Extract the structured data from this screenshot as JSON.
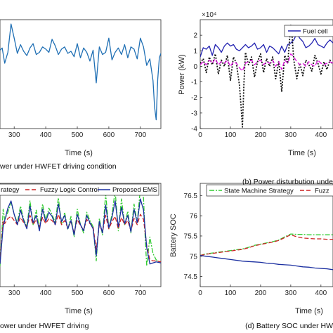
{
  "chart_data": [
    {
      "id": "a",
      "type": "line",
      "caption": "wer under HWFET driving condition",
      "xlabel": "Time (s)",
      "ylabel": "",
      "xlim": [
        255,
        765
      ],
      "ylim": [
        0,
        10
      ],
      "xticks": [
        "300",
        "400",
        "500",
        "600",
        "700"
      ],
      "xtick_values": [
        300,
        400,
        500,
        600,
        700
      ],
      "series": [
        {
          "name": "",
          "color": "#1f6fb4",
          "x": [
            255,
            262,
            270,
            280,
            290,
            300,
            310,
            320,
            330,
            340,
            350,
            360,
            370,
            380,
            390,
            400,
            410,
            420,
            430,
            440,
            450,
            460,
            470,
            480,
            490,
            500,
            510,
            520,
            530,
            540,
            550,
            560,
            570,
            580,
            590,
            600,
            610,
            620,
            630,
            640,
            650,
            660,
            670,
            680,
            690,
            700,
            710,
            720,
            730,
            740,
            745,
            750,
            755,
            760,
            765
          ],
          "y": [
            7.2,
            7.4,
            6.0,
            7.0,
            9.6,
            8.3,
            6.9,
            7.7,
            7.1,
            6.7,
            7.4,
            7.8,
            6.8,
            7.0,
            7.5,
            7.3,
            7.0,
            8.2,
            7.6,
            6.8,
            7.3,
            7.5,
            6.9,
            7.1,
            6.6,
            7.8,
            6.5,
            7.4,
            7.0,
            6.2,
            7.2,
            4.2,
            7.5,
            6.8,
            7.0,
            8.3,
            6.3,
            7.0,
            7.4,
            6.8,
            7.7,
            6.5,
            7.5,
            7.3,
            6.4,
            8.3,
            7.5,
            5.8,
            6.4,
            4.4,
            2.0,
            0.8,
            4.5,
            6.5,
            6.9
          ]
        }
      ]
    },
    {
      "id": "b",
      "type": "line",
      "caption": "(b) Power disturbution unde",
      "xlabel": "Time (s)",
      "ylabel": "Power (kW)",
      "exponent_label": "×10⁴",
      "xlim": [
        0,
        440
      ],
      "ylim": [
        -4,
        3
      ],
      "xticks": [
        "0",
        "100",
        "200",
        "300",
        "400"
      ],
      "xtick_values": [
        0,
        100,
        200,
        300,
        400
      ],
      "yticks": [
        "-4",
        "-3",
        "-2",
        "-1",
        "0",
        "1",
        "2"
      ],
      "ytick_values": [
        -4,
        -3,
        -2,
        -1,
        0,
        1,
        2
      ],
      "legend": [
        "Fuel cell"
      ],
      "series": [
        {
          "name": "Fuel cell",
          "color": "#2020b0",
          "style": "solid",
          "x": [
            0,
            10,
            20,
            30,
            40,
            50,
            60,
            70,
            80,
            90,
            100,
            110,
            120,
            130,
            140,
            150,
            160,
            170,
            180,
            190,
            200,
            210,
            220,
            230,
            240,
            250,
            260,
            270,
            280,
            290,
            300,
            310,
            320,
            330,
            340,
            350,
            360,
            370,
            380,
            390,
            400,
            410,
            420,
            430,
            440
          ],
          "y": [
            0.6,
            1.2,
            1.1,
            1.3,
            0.7,
            1.4,
            1.2,
            0.9,
            1.3,
            1.5,
            1.3,
            1.4,
            1.1,
            1.0,
            1.2,
            1.4,
            1.2,
            1.3,
            1.5,
            1.1,
            1.2,
            1.4,
            0.9,
            1.3,
            1.2,
            1.0,
            0.8,
            1.3,
            0.9,
            1.4,
            1.5,
            1.7,
            2.1,
            1.8,
            1.6,
            1.2,
            1.3,
            1.5,
            1.8,
            1.4,
            1.3,
            1.2,
            1.5,
            1.7,
            1.5
          ]
        },
        {
          "name": "",
          "color": "#111111",
          "style": "dotted",
          "x": [
            0,
            10,
            20,
            30,
            40,
            50,
            60,
            70,
            80,
            90,
            100,
            110,
            120,
            130,
            135,
            140,
            145,
            150,
            160,
            170,
            180,
            190,
            200,
            210,
            220,
            230,
            240,
            250,
            260,
            270,
            280,
            290,
            300,
            305,
            310,
            320,
            330,
            340,
            350,
            360,
            370,
            380,
            390,
            400,
            410,
            420,
            430,
            440
          ],
          "y": [
            0.2,
            0.5,
            -0.4,
            0.6,
            0.1,
            0.8,
            -0.5,
            0.4,
            0.0,
            0.7,
            -0.9,
            0.6,
            0.2,
            -1.2,
            -2.5,
            -3.9,
            -1.0,
            0.9,
            0.1,
            0.6,
            -0.7,
            0.3,
            0.8,
            -0.4,
            0.5,
            0.0,
            0.6,
            -0.8,
            0.3,
            -1.6,
            0.7,
            0.2,
            2.7,
            1.8,
            0.4,
            -0.8,
            0.2,
            -0.6,
            0.4,
            0.1,
            -0.3,
            0.7,
            0.2,
            -0.5,
            0.3,
            -0.2,
            0.4,
            0.1
          ]
        },
        {
          "name": "",
          "color": "#e010e0",
          "style": "dashed",
          "x": [
            0,
            10,
            20,
            30,
            40,
            50,
            60,
            70,
            80,
            90,
            100,
            110,
            120,
            130,
            140,
            150,
            160,
            170,
            180,
            190,
            200,
            210,
            220,
            230,
            240,
            250,
            260,
            270,
            280,
            290,
            300,
            310,
            320,
            330,
            340,
            350,
            360,
            370,
            380,
            390,
            400,
            410,
            420,
            430,
            440
          ],
          "y": [
            0.1,
            0.3,
            0.1,
            0.4,
            0.2,
            0.5,
            0.1,
            0.3,
            0.2,
            0.4,
            0.0,
            0.3,
            0.2,
            -0.1,
            -0.3,
            0.2,
            0.3,
            0.4,
            0.1,
            0.3,
            0.4,
            0.1,
            0.3,
            0.2,
            0.4,
            0.0,
            0.3,
            -0.2,
            0.4,
            0.2,
            0.8,
            0.6,
            0.3,
            0.1,
            0.2,
            0.0,
            0.3,
            0.1,
            0.0,
            0.4,
            0.2,
            0.1,
            0.2,
            0.3,
            0.2
          ]
        }
      ]
    },
    {
      "id": "c",
      "type": "line",
      "caption": "ower under HWFET driving",
      "xlabel": "Time (s)",
      "ylabel": "",
      "xlim": [
        255,
        765
      ],
      "ylim": [
        0,
        10
      ],
      "xticks": [
        "300",
        "400",
        "500",
        "600",
        "700"
      ],
      "xtick_values": [
        300,
        400,
        500,
        600,
        700
      ],
      "legend": [
        "rategy",
        "Fuzzy Logic Control",
        "Proposed EMS"
      ],
      "series": [
        {
          "name": "rategy",
          "color": "#33cc33",
          "style": "dashdot",
          "x": [
            255,
            265,
            270,
            280,
            290,
            300,
            310,
            320,
            330,
            340,
            350,
            360,
            370,
            380,
            390,
            400,
            410,
            420,
            430,
            440,
            450,
            460,
            470,
            480,
            490,
            500,
            510,
            520,
            530,
            540,
            550,
            560,
            570,
            580,
            590,
            600,
            610,
            620,
            630,
            640,
            650,
            660,
            670,
            680,
            690,
            700,
            710,
            715,
            720,
            730,
            740,
            750,
            765
          ],
          "y": [
            2.0,
            7.5,
            6.5,
            7.2,
            8.2,
            7.0,
            6.2,
            7.8,
            6.5,
            5.8,
            8.3,
            6.0,
            7.4,
            5.6,
            8.0,
            6.4,
            7.6,
            7.0,
            6.2,
            8.6,
            6.0,
            7.2,
            5.5,
            6.8,
            4.8,
            7.5,
            6.0,
            5.2,
            7.2,
            6.4,
            5.8,
            2.5,
            6.6,
            5.0,
            9.0,
            5.6,
            7.0,
            9.3,
            5.4,
            8.5,
            6.0,
            7.3,
            5.2,
            8.0,
            6.2,
            9.5,
            8.6,
            5.0,
            2.0,
            4.8,
            3.2,
            2.6,
            2.3
          ]
        },
        {
          "name": "Fuzzy Logic Control",
          "color": "#cc2222",
          "style": "dashed",
          "x": [
            255,
            265,
            270,
            280,
            290,
            300,
            310,
            320,
            330,
            340,
            350,
            360,
            370,
            380,
            390,
            400,
            410,
            420,
            430,
            440,
            450,
            460,
            470,
            480,
            490,
            500,
            510,
            520,
            530,
            540,
            550,
            560,
            570,
            580,
            590,
            600,
            610,
            620,
            630,
            640,
            650,
            660,
            670,
            680,
            690,
            700,
            710,
            720,
            730,
            740,
            750,
            765
          ],
          "y": [
            2.3,
            6.4,
            6.1,
            6.6,
            6.8,
            6.4,
            6.0,
            6.7,
            6.2,
            5.8,
            6.9,
            6.0,
            6.5,
            5.8,
            6.7,
            6.1,
            6.6,
            6.4,
            6.0,
            7.0,
            6.0,
            6.4,
            5.7,
            6.3,
            5.2,
            6.5,
            5.9,
            5.5,
            6.5,
            6.1,
            5.8,
            3.6,
            6.0,
            5.3,
            6.9,
            5.6,
            6.3,
            6.8,
            5.6,
            6.7,
            6.0,
            6.4,
            5.4,
            6.6,
            6.0,
            7.0,
            6.5,
            4.0,
            2.6,
            2.5,
            2.5,
            2.4
          ]
        },
        {
          "name": "Proposed EMS",
          "color": "#1a2ea0",
          "style": "solid",
          "x": [
            255,
            265,
            270,
            280,
            290,
            300,
            310,
            320,
            330,
            340,
            350,
            360,
            370,
            380,
            390,
            400,
            410,
            420,
            430,
            440,
            450,
            460,
            470,
            480,
            490,
            500,
            510,
            520,
            530,
            540,
            550,
            560,
            570,
            580,
            590,
            600,
            610,
            620,
            630,
            640,
            650,
            660,
            670,
            680,
            690,
            700,
            710,
            720,
            730,
            740,
            750,
            765
          ],
          "y": [
            2.2,
            5.8,
            6.4,
            7.6,
            8.3,
            7.0,
            6.0,
            7.4,
            6.4,
            5.6,
            7.8,
            6.2,
            6.9,
            5.4,
            7.5,
            6.3,
            7.2,
            6.8,
            6.0,
            8.0,
            6.3,
            6.9,
            5.6,
            6.4,
            5.0,
            7.0,
            6.0,
            5.4,
            6.9,
            6.2,
            5.6,
            3.0,
            6.3,
            5.2,
            7.9,
            5.7,
            6.7,
            8.3,
            5.8,
            7.7,
            6.1,
            6.9,
            5.3,
            7.5,
            6.2,
            8.5,
            7.4,
            3.8,
            2.2,
            2.3,
            2.4,
            2.3
          ]
        }
      ]
    },
    {
      "id": "d",
      "type": "line",
      "caption": "(d) Battery SOC under HW",
      "xlabel": "Time (s)",
      "ylabel": "Battery SOC",
      "xlim": [
        0,
        440
      ],
      "ylim": [
        74.25,
        76.8
      ],
      "xticks": [
        "0",
        "100",
        "200",
        "300",
        "400"
      ],
      "xtick_values": [
        0,
        100,
        200,
        300,
        400
      ],
      "yticks": [
        "74.5",
        "75",
        "75.5",
        "76",
        "76.5"
      ],
      "ytick_values": [
        74.5,
        75,
        75.5,
        76,
        76.5
      ],
      "legend": [
        "State Machine Strategy",
        "Fuzz"
      ],
      "series": [
        {
          "name": "State Machine Strategy",
          "color": "#33cc33",
          "style": "dashdot",
          "x": [
            0,
            20,
            40,
            60,
            80,
            100,
            120,
            140,
            160,
            180,
            200,
            220,
            240,
            260,
            280,
            300,
            320,
            340,
            360,
            380,
            400,
            420,
            440
          ],
          "y": [
            75.02,
            75.06,
            75.08,
            75.1,
            75.12,
            75.14,
            75.16,
            75.18,
            75.22,
            75.27,
            75.3,
            75.33,
            75.36,
            75.4,
            75.48,
            75.55,
            75.54,
            75.54,
            75.53,
            75.53,
            75.53,
            75.53,
            75.53
          ]
        },
        {
          "name": "Fuzz",
          "color": "#cc2222",
          "style": "dashed",
          "x": [
            0,
            20,
            40,
            60,
            80,
            100,
            120,
            140,
            160,
            180,
            200,
            220,
            240,
            260,
            280,
            300,
            320,
            340,
            360,
            380,
            400,
            420,
            440
          ],
          "y": [
            75.02,
            75.05,
            75.07,
            75.09,
            75.11,
            75.13,
            75.15,
            75.17,
            75.21,
            75.26,
            75.29,
            75.32,
            75.35,
            75.39,
            75.46,
            75.53,
            75.48,
            75.45,
            75.44,
            75.43,
            75.43,
            75.42,
            75.42
          ]
        },
        {
          "name": "",
          "color": "#1a2ea0",
          "style": "solid",
          "x": [
            0,
            20,
            40,
            60,
            80,
            100,
            120,
            140,
            160,
            180,
            200,
            220,
            240,
            260,
            280,
            300,
            320,
            340,
            360,
            380,
            400,
            420,
            440
          ],
          "y": [
            75.02,
            75.0,
            74.98,
            74.96,
            74.94,
            74.92,
            74.9,
            74.88,
            74.87,
            74.86,
            74.85,
            74.83,
            74.82,
            74.8,
            74.79,
            74.78,
            74.76,
            74.74,
            74.73,
            74.71,
            74.7,
            74.69,
            74.67
          ]
        }
      ]
    }
  ]
}
